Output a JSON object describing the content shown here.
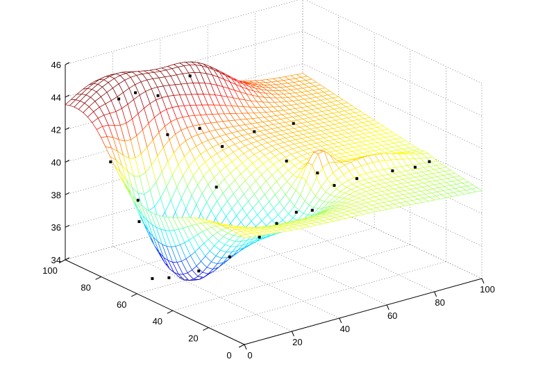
{
  "chart_data": {
    "type": "surface",
    "title": "",
    "xlabel": "",
    "ylabel": "",
    "zlabel": "",
    "grid": true,
    "colormap": "jet",
    "xlim": [
      0,
      100
    ],
    "ylim": [
      0,
      100
    ],
    "zlim": [
      34,
      46
    ],
    "x_ticks": [
      "0",
      "20",
      "40",
      "60",
      "80",
      "100"
    ],
    "y_ticks": [
      "0",
      "20",
      "40",
      "60",
      "80",
      "100"
    ],
    "z_ticks": [
      "34",
      "36",
      "38",
      "40",
      "42",
      "44",
      "46"
    ],
    "scatter_points": [
      {
        "x": 8,
        "y": 62,
        "z": 34.5
      },
      {
        "x": 12,
        "y": 58,
        "z": 34.6
      },
      {
        "x": 20,
        "y": 52,
        "z": 35.0
      },
      {
        "x": 27,
        "y": 44,
        "z": 36.0
      },
      {
        "x": 35,
        "y": 38,
        "z": 37.2
      },
      {
        "x": 40,
        "y": 35,
        "z": 38.0
      },
      {
        "x": 46,
        "y": 32,
        "z": 38.6
      },
      {
        "x": 55,
        "y": 35,
        "z": 38.2
      },
      {
        "x": 62,
        "y": 32,
        "z": 39.6
      },
      {
        "x": 70,
        "y": 30,
        "z": 39.8
      },
      {
        "x": 82,
        "y": 26,
        "z": 40.0
      },
      {
        "x": 90,
        "y": 24,
        "z": 40.0
      },
      {
        "x": 96,
        "y": 24,
        "z": 40.1
      },
      {
        "x": 4,
        "y": 80,
        "z": 40.9
      },
      {
        "x": 8,
        "y": 70,
        "z": 38.9
      },
      {
        "x": 10,
        "y": 72,
        "z": 37.4
      },
      {
        "x": 15,
        "y": 90,
        "z": 43.8
      },
      {
        "x": 22,
        "y": 90,
        "z": 43.9
      },
      {
        "x": 30,
        "y": 88,
        "z": 43.5
      },
      {
        "x": 45,
        "y": 90,
        "z": 44.0
      },
      {
        "x": 28,
        "y": 80,
        "z": 41.6
      },
      {
        "x": 40,
        "y": 78,
        "z": 41.6
      },
      {
        "x": 45,
        "y": 72,
        "z": 40.6
      },
      {
        "x": 38,
        "y": 66,
        "z": 38.7
      },
      {
        "x": 60,
        "y": 74,
        "z": 40.8
      },
      {
        "x": 75,
        "y": 72,
        "z": 40.8
      },
      {
        "x": 63,
        "y": 60,
        "z": 39.6
      },
      {
        "x": 70,
        "y": 52,
        "z": 39.0
      }
    ]
  }
}
